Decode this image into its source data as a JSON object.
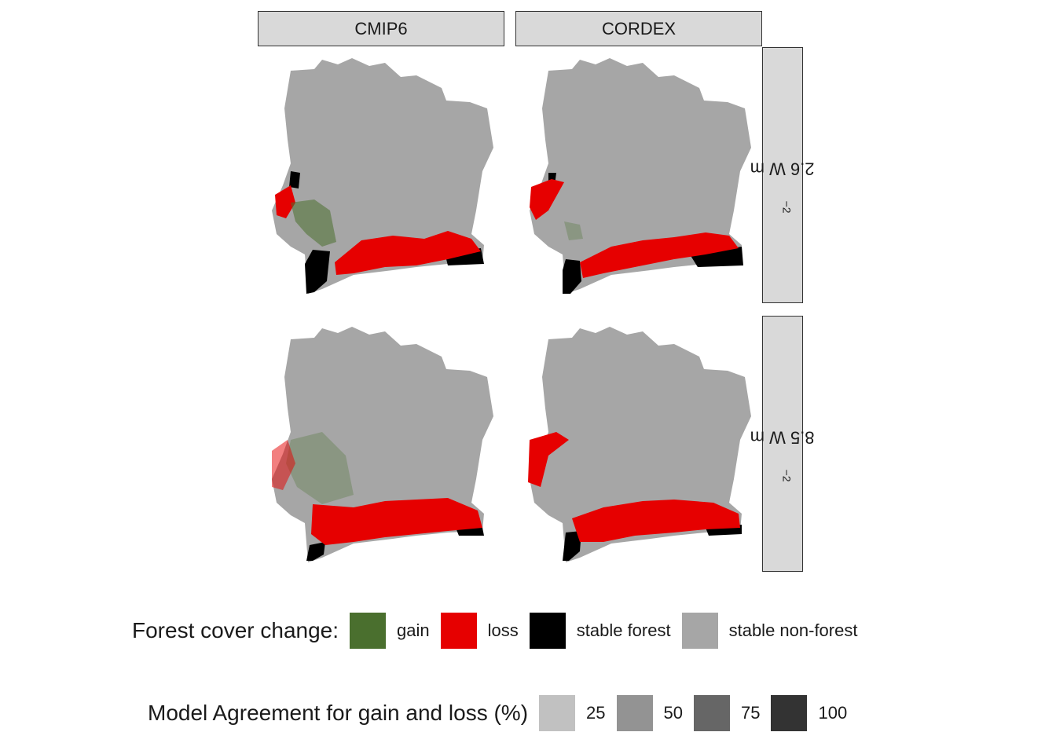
{
  "facets": {
    "columns": [
      "CMIP6",
      "CORDEX"
    ],
    "rows": [
      "2.6 W m",
      "8.5 W m"
    ],
    "row_superscript": "−2"
  },
  "map": {
    "country_fill": "#a6a6a6",
    "stable_forest_color": "#000000",
    "loss_color": "#e60000",
    "gain_color": "#4a6f2e"
  },
  "legend_change": {
    "title": "Forest cover change:",
    "items": [
      {
        "label": "gain",
        "color": "#4a6f2e"
      },
      {
        "label": "loss",
        "color": "#e60000"
      },
      {
        "label": "stable forest",
        "color": "#000000"
      },
      {
        "label": "stable non-forest",
        "color": "#a6a6a6"
      }
    ]
  },
  "legend_agreement": {
    "title": "Model Agreement for gain and loss (%)",
    "items": [
      {
        "label": "25",
        "color": "#c1c1c1"
      },
      {
        "label": "50",
        "color": "#939393"
      },
      {
        "label": "75",
        "color": "#666666"
      },
      {
        "label": "100",
        "color": "#333333"
      }
    ]
  }
}
